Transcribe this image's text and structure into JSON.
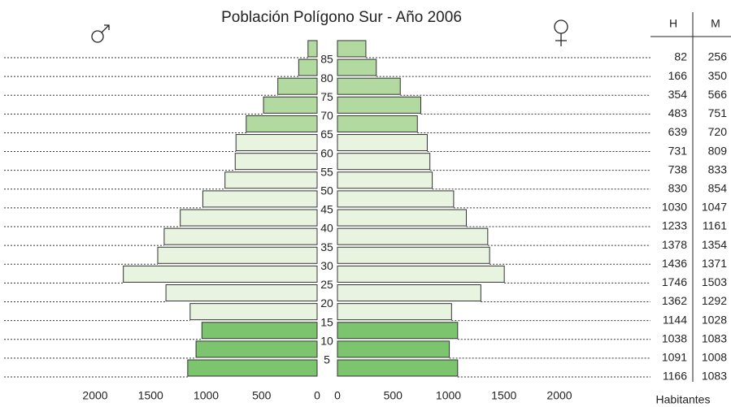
{
  "chart_data": {
    "type": "pyramid",
    "title": "Población Polígono Sur - Año 2006",
    "x_label": "Habitantes",
    "age_ticks": [
      5,
      10,
      15,
      20,
      25,
      30,
      35,
      40,
      45,
      50,
      55,
      60,
      65,
      70,
      75,
      80,
      85
    ],
    "series": [
      {
        "name": "H",
        "values": [
          1166,
          1091,
          1038,
          1144,
          1362,
          1746,
          1436,
          1378,
          1233,
          1030,
          830,
          738,
          731,
          639,
          483,
          354,
          166,
          82
        ]
      },
      {
        "name": "M",
        "values": [
          1083,
          1008,
          1083,
          1028,
          1292,
          1503,
          1371,
          1354,
          1161,
          1047,
          854,
          833,
          809,
          720,
          751,
          566,
          350,
          256
        ]
      }
    ],
    "bar_colors": [
      "#7dc46e",
      "#7dc46e",
      "#7dc46e",
      "#e8f4e0",
      "#e8f4e0",
      "#e8f4e0",
      "#e8f4e0",
      "#e8f4e0",
      "#e8f4e0",
      "#e8f4e0",
      "#e8f4e0",
      "#e8f4e0",
      "#e8f4e0",
      "#b2d9a0",
      "#b2d9a0",
      "#b2d9a0",
      "#b2d9a0",
      "#b2d9a0"
    ],
    "xlim": [
      0,
      2000
    ],
    "xticks": [
      0,
      500,
      1000,
      1500,
      2000
    ]
  }
}
